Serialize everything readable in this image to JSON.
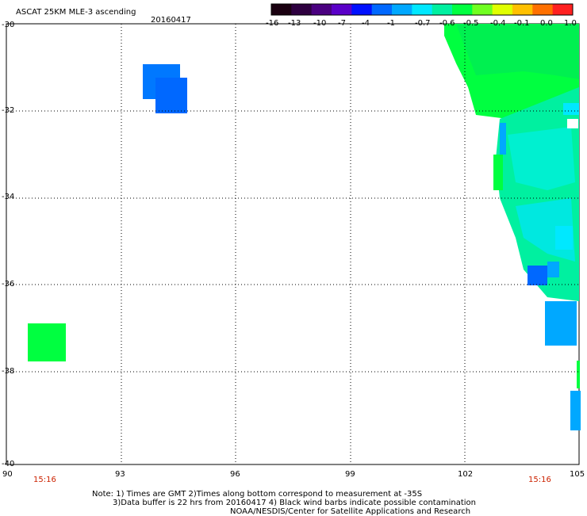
{
  "header": {
    "title": "ASCAT 25KM MLE-3 ascending",
    "date": "20160417"
  },
  "colorbar": {
    "labels": [
      "-16",
      "-13",
      "-10",
      "-7",
      "-4",
      "-1",
      "-0.7",
      "-0.6",
      "-0.5",
      "-0.4",
      "-0.1",
      "0.0",
      "1.0"
    ],
    "colors": [
      "#1a0010",
      "#2e0040",
      "#4a0080",
      "#5a00c8",
      "#0010ff",
      "#0068ff",
      "#00a8ff",
      "#00e8ff",
      "#00f0a0",
      "#00ff40",
      "#70ff20",
      "#e0ff00",
      "#ffc000",
      "#ff7000",
      "#ff2020"
    ]
  },
  "map": {
    "lat_labels": [
      "-30",
      "-32",
      "-34",
      "-36",
      "-38",
      "-40"
    ],
    "lon_labels": [
      "90",
      "93",
      "96",
      "99",
      "102",
      "105"
    ],
    "time_labels": [
      "15:16",
      "15:16"
    ]
  },
  "notes": {
    "line1": "Note: 1) Times are GMT 2)Times along bottom correspond to measurement at -35S",
    "line2": "3)Data buffer is 22 hrs from 20160417 4) Black wind barbs indicate possible contamination",
    "line3": "NOAA/NESDIS/Center for Satellite Applications and Research"
  }
}
